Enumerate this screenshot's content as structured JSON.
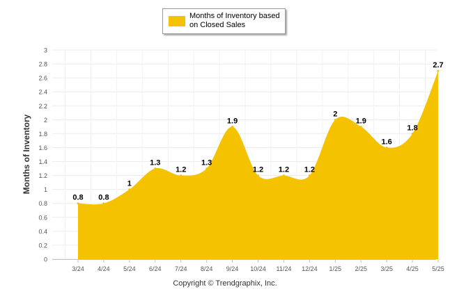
{
  "chart_data": {
    "type": "area",
    "series": [
      {
        "name": "Months of Inventory based on Closed Sales",
        "values": [
          0.8,
          0.8,
          1,
          1.3,
          1.2,
          1.3,
          1.9,
          1.2,
          1.2,
          1.2,
          2,
          1.9,
          1.6,
          1.8,
          2.7
        ],
        "color": "#f5c200"
      }
    ],
    "categories": [
      "3/24",
      "4/24",
      "5/24",
      "6/24",
      "7/24",
      "8/24",
      "9/24",
      "10/24",
      "11/24",
      "12/24",
      "1/25",
      "2/25",
      "3/25",
      "4/25",
      "5/25"
    ],
    "data_labels": [
      "0.8",
      "0.8",
      "1",
      "1.3",
      "1.2",
      "1.3",
      "1.9",
      "1.2",
      "1.2",
      "1.2",
      "2",
      "1.9",
      "1.6",
      "1.8",
      "2.7"
    ],
    "ylabel": "Months of Inventory",
    "xlabel": "",
    "ylim": [
      0,
      3
    ],
    "yticks": [
      "0",
      "0.2",
      "0.4",
      "0.6",
      "0.8",
      "1",
      "1.2",
      "1.4",
      "1.6",
      "1.8",
      "2",
      "2.2",
      "2.4",
      "2.6",
      "2.8",
      "3"
    ],
    "grid": true,
    "legend_position": "top-center",
    "footer": "Copyright © Trendgraphix, Inc."
  }
}
